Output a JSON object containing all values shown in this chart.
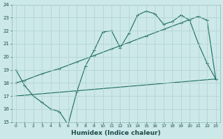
{
  "xlabel": "Humidex (Indice chaleur)",
  "bg_color": "#cce8e8",
  "grid_color": "#b0d0d0",
  "line_color": "#1a6b5a",
  "xlim": [
    -0.5,
    23.5
  ],
  "ylim": [
    15,
    24
  ],
  "xticks": [
    0,
    1,
    2,
    3,
    4,
    5,
    6,
    7,
    8,
    9,
    10,
    11,
    12,
    13,
    14,
    15,
    16,
    17,
    18,
    19,
    20,
    21,
    22,
    23
  ],
  "yticks": [
    15,
    16,
    17,
    18,
    19,
    20,
    21,
    22,
    23,
    24
  ],
  "line1_x": [
    0,
    1,
    2,
    3,
    4,
    5,
    6,
    7,
    8,
    9,
    10,
    11,
    12,
    13,
    14,
    15,
    16,
    17,
    18,
    19,
    20,
    21,
    22,
    23
  ],
  "line1_y": [
    19.0,
    17.8,
    17.0,
    16.5,
    16.0,
    15.8,
    14.8,
    17.3,
    19.3,
    20.5,
    21.9,
    22.0,
    20.7,
    21.8,
    23.2,
    23.5,
    23.3,
    22.5,
    22.7,
    23.2,
    22.8,
    21.0,
    19.5,
    18.3
  ],
  "line2_x": [
    0,
    23
  ],
  "line2_y": [
    17.0,
    18.3
  ],
  "line3_x": [
    0,
    1,
    3,
    5,
    7,
    9,
    11,
    13,
    15,
    17,
    19,
    21,
    22,
    23
  ],
  "line3_y": [
    18.0,
    18.2,
    18.7,
    19.1,
    19.6,
    20.1,
    20.6,
    21.1,
    21.6,
    22.1,
    22.6,
    23.1,
    22.8,
    18.3
  ]
}
